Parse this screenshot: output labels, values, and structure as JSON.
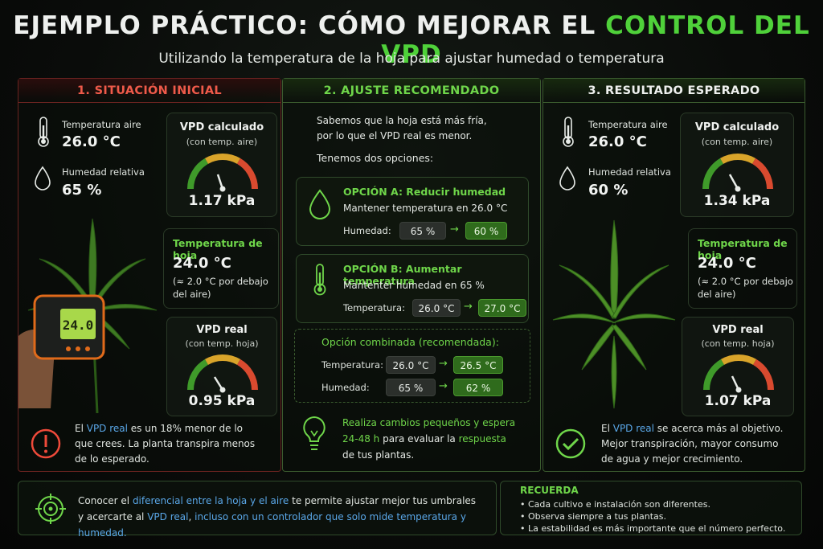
{
  "header": {
    "title_part1": "EJEMPLO PRÁCTICO: CÓMO MEJORAR EL ",
    "title_part2": "CONTROL DEL VPD",
    "subtitle": "Utilizando la temperatura de la hoja para ajustar humedad o temperatura"
  },
  "panel1": {
    "title": "1. SITUACIÓN INICIAL",
    "temp_label": "Temperatura aire",
    "temp_value": "26.0 °C",
    "hum_label": "Humedad relativa",
    "hum_value": "65 %",
    "vpd_calc": {
      "title": "VPD calculado",
      "sub": "(con temp. aire)",
      "value": "1.17 kPa"
    },
    "leaf": {
      "title": "Temperatura de hoja",
      "value": "24.0 °C",
      "note1": "(≈ 2.0 °C por debajo",
      "note2": "del aire)"
    },
    "vpd_real": {
      "title": "VPD real",
      "sub": "(con temp. hoja)",
      "value": "0.95 kPa"
    },
    "thermometer_display": "24.0",
    "warning": {
      "p1": "El ",
      "vpd": "VPD real",
      "p2": " es un 18% menor de lo",
      "line2": "que crees. La planta transpira menos",
      "line3": "de lo esperado."
    }
  },
  "panel2": {
    "title": "2. AJUSTE RECOMENDADO",
    "intro1": "Sabemos que la hoja está más fría,",
    "intro2": "por lo que el VPD real es menor.",
    "intro3": "Tenemos dos opciones:",
    "optA": {
      "title": "OPCIÓN A:  Reducir humedad",
      "desc": "Mantener temperatura en 26.0 °C",
      "label": "Humedad:",
      "from": "65 %",
      "to": "60 %"
    },
    "optB": {
      "title": "OPCIÓN B:  Aumentar temperatura",
      "desc": "Mantenter humedad en 65 %",
      "label": "Temperatura:",
      "from": "26.0 °C",
      "to": "27.0 °C"
    },
    "combined": {
      "title": "Opción combinada (recomendada):",
      "temp_label": "Temperatura:",
      "temp_from": "26.0 °C",
      "temp_to": "26.5 °C",
      "hum_label": "Humedad:",
      "hum_from": "65 %",
      "hum_to": "62 %"
    },
    "tip": {
      "l1": "Realiza cambios pequeños y espera",
      "l2a": "24-48 h",
      "l2b": " para evaluar la ",
      "l2c": "respuesta",
      "l3": "de tus plantas."
    }
  },
  "panel3": {
    "title": "3. RESULTADO ESPERADO",
    "temp_label": "Temperatura aire",
    "temp_value": "26.0 °C",
    "hum_label": "Humedad relativa",
    "hum_value": "60 %",
    "vpd_calc": {
      "title": "VPD calculado",
      "sub": "(con temp. aire)",
      "value": "1.34 kPa"
    },
    "leaf": {
      "title": "Temperatura de hoja",
      "value": "24.0 °C",
      "note1": "(≈ 2.0 °C por debajo",
      "note2": "del aire)"
    },
    "vpd_real": {
      "title": "VPD real",
      "sub": "(con temp. hoja)",
      "value": "1.07 kPa"
    },
    "success": {
      "p1": "El ",
      "vpd": "VPD real",
      "p2": " se acerca más al objetivo.",
      "line2": "Mejor transpiración, mayor consumo",
      "line3": "de agua y mejor crecimiento."
    }
  },
  "bottom": {
    "tip_p1": "Conocer el ",
    "tip_b1": "diferencial entre la hoja y el aire",
    "tip_p2": " te permite ajustar mejor tus umbrales",
    "tip_p3": "y acercarte al ",
    "tip_b2": "VPD real",
    "tip_p4": ", ",
    "tip_b3": "incluso con un controlador que solo mide temperatura y humedad.",
    "recuerda_title": "RECUERDA",
    "recuerda": [
      "Cada cultivo e instalación son diferentes.",
      "Observa siempre a tus plantas.",
      "La estabilidad es más importante que el número perfecto."
    ]
  },
  "colors": {
    "accent_green": "#4fd13a",
    "alert_red": "#ef5a4a",
    "link_blue": "#5aa7e8"
  },
  "icons": [
    "thermometer-icon",
    "droplet-icon",
    "warning-icon",
    "lightbulb-icon",
    "check-icon",
    "target-icon"
  ]
}
